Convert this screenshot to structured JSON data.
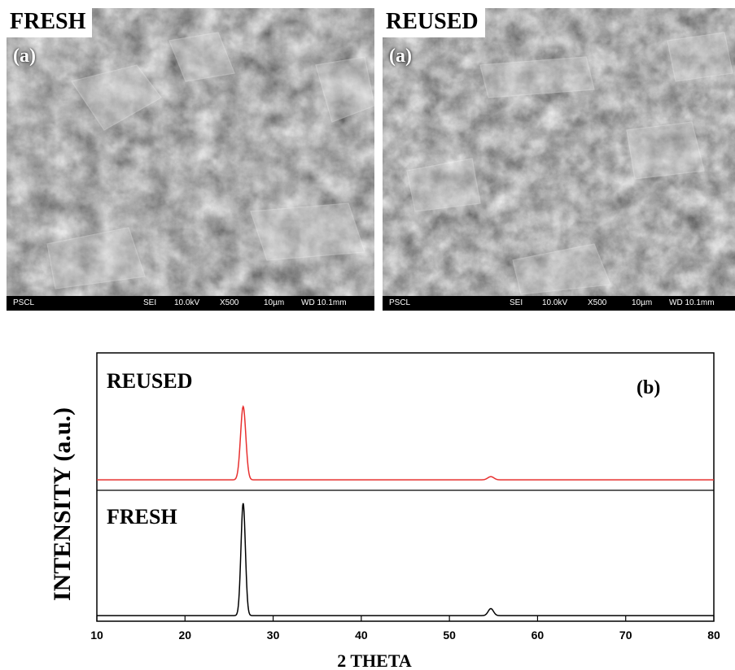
{
  "sem_panels": [
    {
      "id": "fresh",
      "corner_label": "FRESH",
      "panel_letter": "(a)",
      "info": {
        "lab": "PSCL",
        "mode": "SEI",
        "voltage": "10.0kV",
        "magnification": "X500",
        "scale": "10µm",
        "wd": "WD 10.1mm"
      }
    },
    {
      "id": "reused",
      "corner_label": "REUSED",
      "panel_letter": "(a)",
      "info": {
        "lab": "PSCL",
        "mode": "SEI",
        "voltage": "10.0kV",
        "magnification": "X500",
        "scale": "10µm",
        "wd": "WD 10.1mm"
      }
    }
  ],
  "chart_data": {
    "type": "line",
    "panel_letter": "(b)",
    "xlabel": "2 THETA",
    "ylabel": "INTENSITY (a.u.)",
    "xlim": [
      10,
      80
    ],
    "xticks": [
      10,
      20,
      30,
      40,
      50,
      60,
      70,
      80
    ],
    "series": [
      {
        "name": "REUSED",
        "color": "#e8302f",
        "baseline": 0.08,
        "peaks": [
          {
            "x": 26.6,
            "height": 0.92,
            "width": 0.3
          },
          {
            "x": 54.7,
            "height": 0.04,
            "width": 0.35
          }
        ]
      },
      {
        "name": "FRESH",
        "color": "#000000",
        "baseline": 0.02,
        "peaks": [
          {
            "x": 26.6,
            "height": 0.96,
            "width": 0.25
          },
          {
            "x": 54.7,
            "height": 0.06,
            "width": 0.3
          }
        ]
      }
    ]
  }
}
